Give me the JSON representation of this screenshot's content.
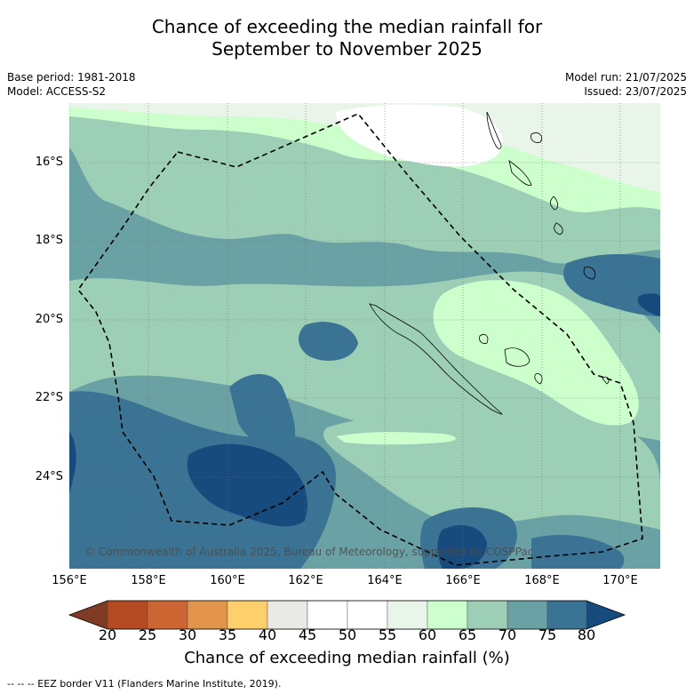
{
  "header": {
    "title_line1": "Chance of exceeding the median rainfall for",
    "title_line2": "September to November 2025",
    "base_period": "Base period: 1981-2018",
    "model": "Model: ACCESS-S2",
    "model_run": "Model run: 21/07/2025",
    "issued": "Issued: 23/07/2025"
  },
  "axes": {
    "lat_labels": [
      "16°S",
      "18°S",
      "20°S",
      "22°S",
      "24°S"
    ],
    "lon_labels": [
      "156°E",
      "158°E",
      "160°E",
      "162°E",
      "164°E",
      "166°E",
      "168°E",
      "170°E"
    ]
  },
  "colorbar": {
    "ticks": [
      "20",
      "25",
      "30",
      "35",
      "40",
      "45",
      "50",
      "55",
      "60",
      "65",
      "70",
      "75",
      "80"
    ],
    "colors": [
      "#b34a22",
      "#cd6532",
      "#e2944b",
      "#fdd06c",
      "#e9e9e6",
      "#ffffff",
      "#ffffff",
      "#eaf5e9",
      "#ccffcc",
      "#9ccfb6",
      "#6aa1a4",
      "#3a7394"
    ],
    "low_color": "#7f3b24",
    "high_color": "#174b7e",
    "label": "Chance of exceeding median rainfall (%)"
  },
  "map_colors": {
    "band_45_55": "#ffffff",
    "band_55_60": "#eaf5e9",
    "band_60_65": "#ccffcc",
    "band_65_70": "#9ccfb6",
    "band_70_75": "#6aa1a4",
    "band_75_80": "#3a7394",
    "band_80_plus": "#174b7e"
  },
  "copyright": "© Commonwealth of Australia 2025, Bureau of Meteorology, supported by COSPPac",
  "footnote": "-- -- -- EEZ border V11 (Flanders Marine Institute, 2019)."
}
